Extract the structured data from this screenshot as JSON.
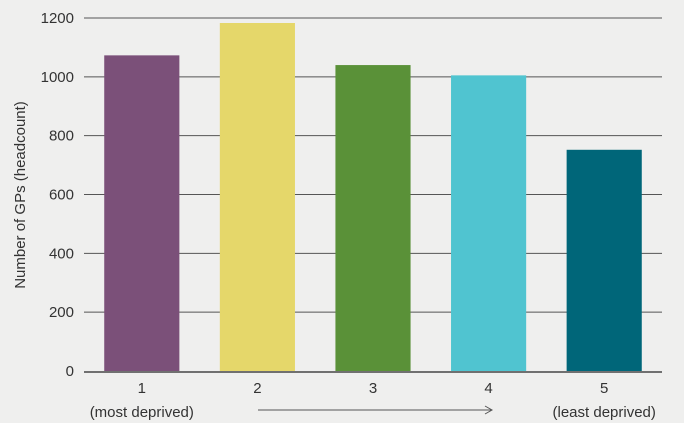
{
  "chart_data": {
    "type": "bar",
    "categories": [
      "1",
      "2",
      "3",
      "4",
      "5"
    ],
    "category_sublabels": [
      "(most deprived)",
      "",
      "",
      "",
      "(least deprived)"
    ],
    "values": [
      1073,
      1183,
      1040,
      1005,
      752
    ],
    "colors": [
      "#7b5079",
      "#e5d76a",
      "#5a9138",
      "#50c4d0",
      "#006679"
    ],
    "title": "",
    "xlabel": "",
    "ylabel": "Number of GPs (headcount)",
    "ylim": [
      0,
      1200
    ],
    "yticks": [
      0,
      200,
      400,
      600,
      800,
      1000,
      1200
    ],
    "grid": true,
    "legend": "none",
    "annotation": "arrow from most deprived to least deprived"
  }
}
